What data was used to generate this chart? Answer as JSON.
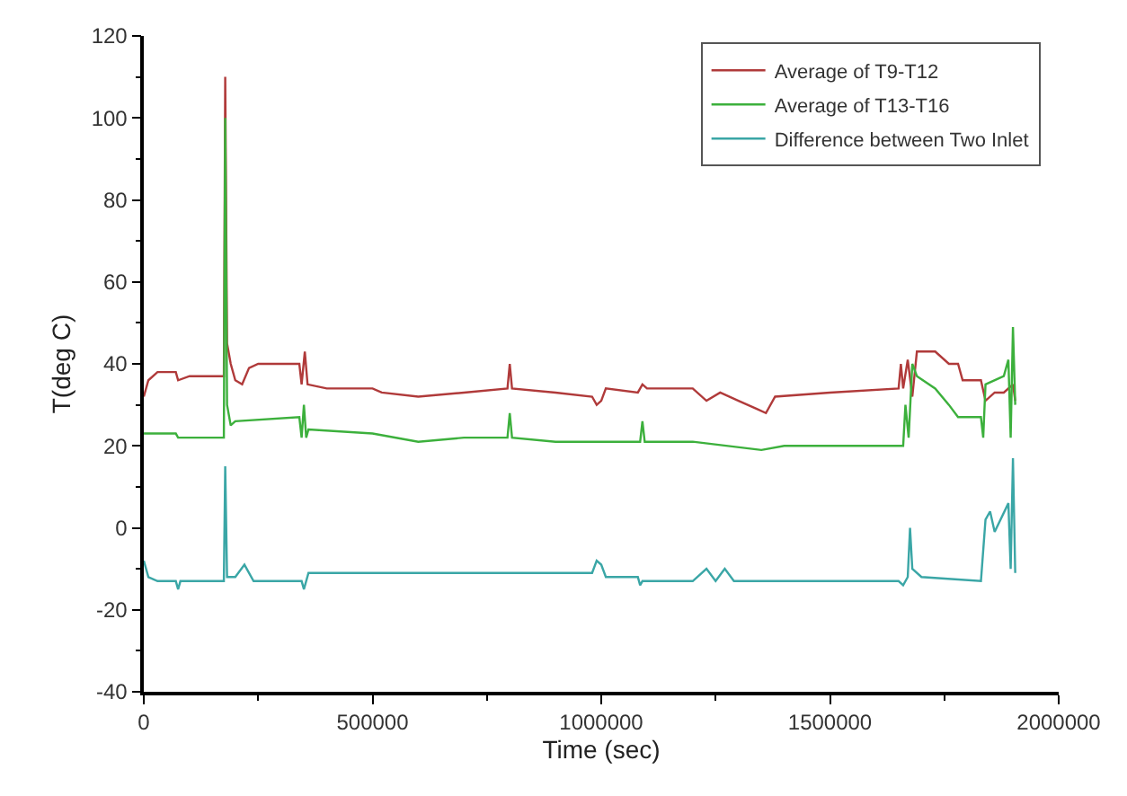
{
  "chart_data": {
    "type": "line",
    "xlabel": "Time (sec)",
    "ylabel": "T(deg C)",
    "xlim": [
      0,
      2000000
    ],
    "xticks": [
      0,
      500000,
      1000000,
      1500000,
      2000000
    ],
    "ylim": [
      -40,
      120
    ],
    "yticks": [
      -40,
      -20,
      0,
      20,
      40,
      60,
      80,
      100,
      120
    ],
    "grid": false,
    "legend": "top right",
    "marker": "none",
    "line_style": "solid",
    "series": [
      {
        "name": "Average of T9-T12",
        "color": "#b03a3a",
        "x": [
          0,
          10000,
          30000,
          70000,
          75000,
          100000,
          170000,
          175000,
          178000,
          182000,
          190000,
          200000,
          215000,
          230000,
          250000,
          340000,
          345000,
          352000,
          358000,
          400000,
          500000,
          520000,
          600000,
          700000,
          795000,
          800000,
          805000,
          900000,
          980000,
          990000,
          1000000,
          1010000,
          1080000,
          1090000,
          1100000,
          1200000,
          1230000,
          1260000,
          1300000,
          1340000,
          1360000,
          1380000,
          1500000,
          1650000,
          1655000,
          1660000,
          1670000,
          1680000,
          1690000,
          1730000,
          1760000,
          1780000,
          1790000,
          1830000,
          1840000,
          1860000,
          1880000,
          1900000,
          1905000
        ],
        "values": [
          32,
          36,
          38,
          38,
          36,
          37,
          37,
          37,
          110,
          45,
          40,
          36,
          35,
          39,
          40,
          40,
          35,
          43,
          35,
          34,
          34,
          33,
          32,
          33,
          34,
          40,
          34,
          33,
          32,
          30,
          31,
          34,
          33,
          35,
          34,
          34,
          31,
          33,
          31,
          29,
          28,
          32,
          33,
          34,
          40,
          34,
          41,
          32,
          43,
          43,
          40,
          40,
          36,
          36,
          31,
          33,
          33,
          35,
          31
        ]
      },
      {
        "name": "Average of T13-T16",
        "color": "#3cb03c",
        "x": [
          0,
          70000,
          75000,
          170000,
          175000,
          178000,
          182000,
          190000,
          200000,
          340000,
          345000,
          350000,
          355000,
          360000,
          500000,
          600000,
          700000,
          795000,
          800000,
          805000,
          900000,
          1000000,
          1085000,
          1090000,
          1095000,
          1200000,
          1350000,
          1400000,
          1650000,
          1660000,
          1665000,
          1672000,
          1680000,
          1690000,
          1730000,
          1760000,
          1780000,
          1830000,
          1835000,
          1840000,
          1880000,
          1890000,
          1895000,
          1900000,
          1905000
        ],
        "values": [
          23,
          23,
          22,
          22,
          22,
          100,
          30,
          25,
          26,
          27,
          22,
          30,
          22,
          24,
          23,
          21,
          22,
          22,
          28,
          22,
          21,
          21,
          21,
          26,
          21,
          21,
          19,
          20,
          20,
          20,
          30,
          22,
          40,
          37,
          34,
          30,
          27,
          27,
          22,
          35,
          37,
          41,
          22,
          49,
          30
        ]
      },
      {
        "name": "Difference between Two Inlet",
        "color": "#3aa6a6",
        "x": [
          0,
          10000,
          30000,
          70000,
          75000,
          80000,
          170000,
          175000,
          178000,
          182000,
          200000,
          220000,
          240000,
          345000,
          350000,
          360000,
          500000,
          800000,
          980000,
          990000,
          1000000,
          1010000,
          1080000,
          1085000,
          1090000,
          1200000,
          1230000,
          1250000,
          1270000,
          1290000,
          1650000,
          1660000,
          1670000,
          1675000,
          1680000,
          1700000,
          1830000,
          1840000,
          1850000,
          1860000,
          1890000,
          1895000,
          1900000,
          1905000
        ],
        "values": [
          -8,
          -12,
          -13,
          -13,
          -15,
          -13,
          -13,
          -13,
          15,
          -12,
          -12,
          -9,
          -13,
          -13,
          -15,
          -11,
          -11,
          -11,
          -11,
          -8,
          -9,
          -12,
          -12,
          -14,
          -13,
          -13,
          -10,
          -13,
          -10,
          -13,
          -13,
          -14,
          -12,
          0,
          -10,
          -12,
          -13,
          2,
          4,
          -1,
          6,
          -10,
          17,
          -11
        ]
      }
    ]
  }
}
